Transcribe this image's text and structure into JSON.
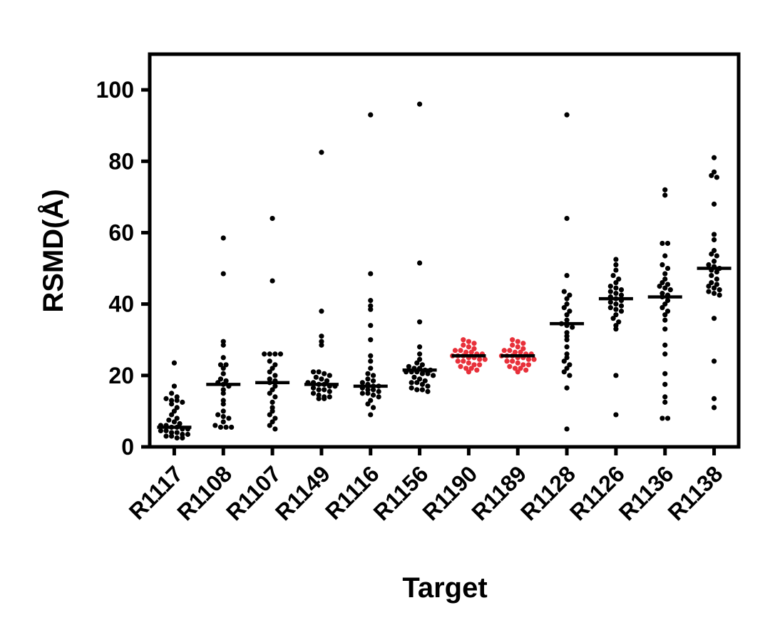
{
  "chart_data": {
    "type": "scatter",
    "subtype": "dot-strip-with-median",
    "title": "",
    "xlabel": "Target",
    "ylabel": "RSMD(Å)",
    "ylim": [
      0,
      110
    ],
    "yticks": [
      0,
      20,
      40,
      60,
      80,
      100
    ],
    "grid": false,
    "legend": "none",
    "categories": [
      "R1117",
      "R1108",
      "R1107",
      "R1149",
      "R1116",
      "R1156",
      "R1190",
      "R1189",
      "R1128",
      "R1126",
      "R1136",
      "R1138"
    ],
    "highlight_color": "#e8303a",
    "default_color": "#000000",
    "series": [
      {
        "category": "R1117",
        "median": 5.5,
        "color": "#000000",
        "values": [
          23.5,
          17,
          15,
          14,
          13.5,
          13,
          13,
          12.5,
          12,
          11,
          10,
          9,
          8,
          7.5,
          7,
          6.5,
          6,
          6,
          5.5,
          5.5,
          5,
          5,
          4.5,
          4.5,
          4,
          4,
          3.5,
          3.5,
          3,
          3,
          2.5,
          2.5
        ]
      },
      {
        "category": "R1108",
        "median": 17.5,
        "color": "#000000",
        "values": [
          58.5,
          48.5,
          29.5,
          28.5,
          25,
          23,
          23,
          22,
          20.5,
          19,
          18.5,
          18,
          17.5,
          17,
          16,
          15,
          13,
          12,
          10,
          9,
          8.5,
          8,
          7,
          6,
          5.5,
          5.5,
          5.5
        ]
      },
      {
        "category": "R1107",
        "median": 18,
        "color": "#000000",
        "values": [
          64,
          46.5,
          26,
          26,
          26,
          26,
          24,
          23,
          22,
          21,
          20,
          19,
          18.5,
          18,
          17,
          16,
          15,
          14,
          12.5,
          11,
          10,
          9,
          8,
          7,
          6,
          5
        ]
      },
      {
        "category": "R1149",
        "median": 17.5,
        "color": "#000000",
        "values": [
          82.5,
          38,
          31,
          29.5,
          28.5,
          21,
          21,
          20.5,
          20,
          19.5,
          19,
          18.5,
          18,
          18,
          17.5,
          17.5,
          17,
          17,
          16.5,
          16,
          16,
          15.5,
          15,
          14.5,
          14,
          14,
          13.5,
          13.5
        ]
      },
      {
        "category": "R1116",
        "median": 17,
        "color": "#000000",
        "values": [
          93,
          48.5,
          41,
          39.5,
          38.5,
          34,
          30,
          25.5,
          24,
          22,
          20.5,
          20,
          19,
          18.5,
          18,
          17.5,
          17,
          17,
          16.5,
          16,
          16,
          15.5,
          15,
          15,
          14.5,
          14,
          13,
          12,
          11,
          9
        ]
      },
      {
        "category": "R1156",
        "median": 21.5,
        "color": "#000000",
        "values": [
          96,
          51.5,
          35,
          28,
          26,
          24.5,
          23.5,
          23,
          22.5,
          22,
          22,
          21.5,
          21.5,
          21,
          21,
          21,
          20.5,
          20.5,
          20,
          19.5,
          19,
          18.5,
          18,
          18,
          17.5,
          17,
          16.5,
          16,
          16,
          15.5
        ]
      },
      {
        "category": "R1190",
        "median": 25.5,
        "color": "#e8303a",
        "values": [
          30,
          29.5,
          29,
          28.5,
          28,
          27.5,
          27,
          27,
          26.5,
          26.5,
          26,
          26,
          25.5,
          25.5,
          25.5,
          25,
          25,
          24.5,
          24.5,
          24,
          24,
          23.5,
          23,
          23,
          22.5,
          22,
          22,
          21.5,
          21
        ]
      },
      {
        "category": "R1189",
        "median": 25.5,
        "color": "#e8303a",
        "values": [
          30,
          29.5,
          29,
          28.5,
          28,
          27.5,
          27,
          27,
          26.5,
          26.5,
          26,
          26,
          25.5,
          25.5,
          25.5,
          25,
          25,
          24.5,
          24.5,
          24,
          24,
          23.5,
          23,
          23,
          22.5,
          22,
          22,
          21.5,
          21
        ]
      },
      {
        "category": "R1128",
        "median": 34.5,
        "color": "#000000",
        "values": [
          93,
          64,
          48,
          43.5,
          42.5,
          41.5,
          40,
          39,
          38,
          37,
          35.5,
          34.5,
          34,
          33.5,
          32,
          31,
          30,
          28,
          26,
          25,
          24,
          23,
          22,
          21,
          20,
          16.5,
          5
        ]
      },
      {
        "category": "R1126",
        "median": 41.5,
        "color": "#000000",
        "values": [
          52.5,
          51,
          49.5,
          48,
          47,
          46,
          45,
          44.5,
          44,
          43.5,
          43,
          42.5,
          42,
          41.5,
          41,
          40.5,
          40,
          39.5,
          39,
          38.5,
          38,
          37,
          36,
          35,
          34,
          33,
          20,
          9
        ]
      },
      {
        "category": "R1136",
        "median": 42,
        "color": "#000000",
        "values": [
          72,
          70.5,
          57,
          57,
          53.5,
          51,
          50,
          48.5,
          47,
          46,
          45.5,
          45,
          44.5,
          44,
          43,
          42.5,
          42,
          41,
          40,
          39,
          38,
          37,
          35.5,
          33,
          28.5,
          26,
          20.5,
          17.5,
          14,
          12.5,
          8,
          8
        ]
      },
      {
        "category": "R1138",
        "median": 50,
        "color": "#000000",
        "values": [
          81,
          77,
          76,
          75.5,
          68,
          59.5,
          58,
          55,
          54,
          53.5,
          52,
          51,
          50.5,
          50,
          49.5,
          49,
          48,
          47,
          46,
          45.5,
          45,
          44.5,
          44,
          43.5,
          43,
          42.5,
          36,
          24,
          13.5,
          11
        ]
      }
    ]
  }
}
